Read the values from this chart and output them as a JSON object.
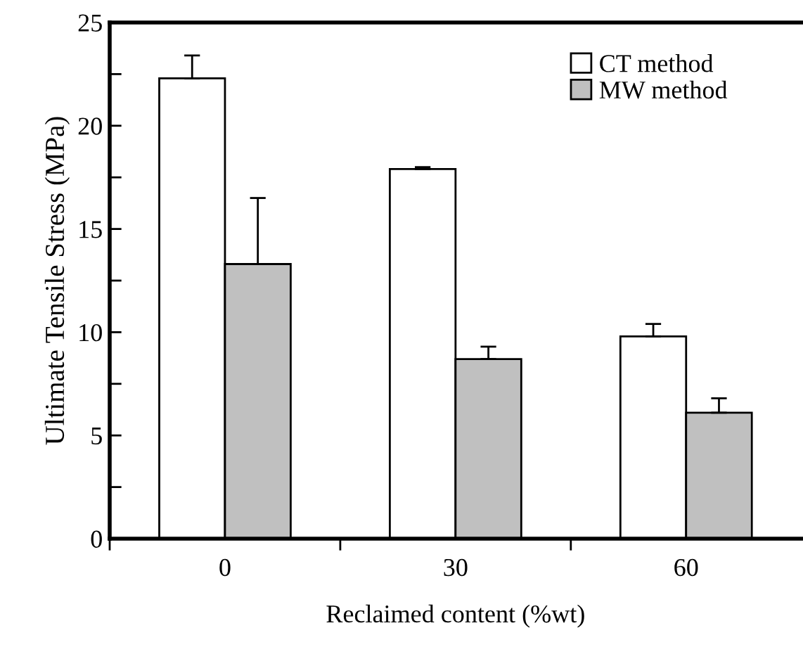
{
  "chart_data": {
    "type": "bar",
    "xlabel": "Reclaimed content (%wt)",
    "ylabel": "Ultimate Tensile Stress (MPa)",
    "categories": [
      "0",
      "30",
      "60"
    ],
    "series": [
      {
        "name": "CT method",
        "color": "#ffffff",
        "values": [
          22.3,
          17.9,
          9.8
        ],
        "errors": [
          [
            22.3,
            23.4
          ],
          [
            17.9,
            18.0
          ],
          [
            9.8,
            10.4
          ]
        ]
      },
      {
        "name": "MW method",
        "color": "#c0c0c0",
        "values": [
          13.3,
          8.7,
          6.1
        ],
        "errors": [
          [
            13.3,
            16.5
          ],
          [
            8.7,
            9.3
          ],
          [
            6.1,
            6.8
          ]
        ]
      }
    ],
    "ylim": [
      0,
      25
    ],
    "yticks": [
      0,
      5,
      10,
      15,
      20,
      25
    ],
    "grid": false,
    "legend": "top right"
  }
}
